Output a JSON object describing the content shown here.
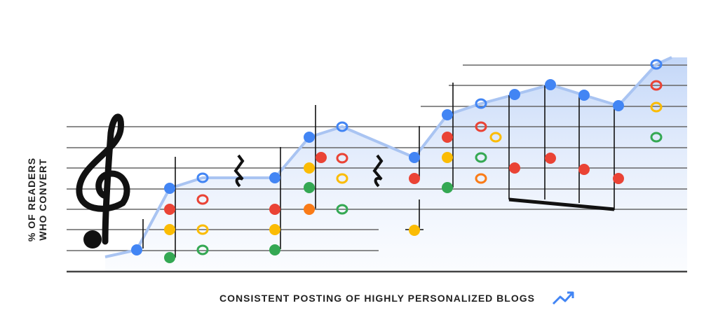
{
  "y_label": [
    "% OF READERS",
    "WHO CONVERT"
  ],
  "x_label": "CONSISTENT POSTING OF HIGHLY PERSONALIZED BLOGS"
}
